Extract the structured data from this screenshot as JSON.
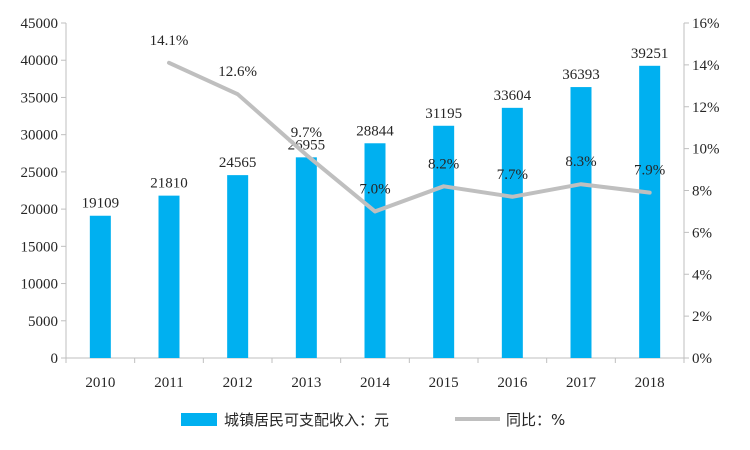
{
  "chart_data": {
    "type": "bar",
    "categories": [
      "2010",
      "2011",
      "2012",
      "2013",
      "2014",
      "2015",
      "2016",
      "2017",
      "2018"
    ],
    "series": [
      {
        "name": "城镇居民可支配收入：元",
        "type": "bar",
        "axis": "left",
        "color": "#00B0F0",
        "values": [
          19109,
          21810,
          24565,
          26955,
          28844,
          31195,
          33604,
          36393,
          39251
        ]
      },
      {
        "name": "同比：%",
        "type": "line",
        "axis": "right",
        "color": "#BFBFBF",
        "values": [
          null,
          14.1,
          12.6,
          9.7,
          7.0,
          8.2,
          7.7,
          8.3,
          7.9
        ],
        "labels": [
          "",
          "14.1%",
          "12.6%",
          "9.7%",
          "7.0%",
          "8.2%",
          "7.7%",
          "8.3%",
          "7.9%"
        ]
      }
    ],
    "ylim_left": [
      0,
      45000
    ],
    "yticks_left": [
      "0",
      "5000",
      "10000",
      "15000",
      "20000",
      "25000",
      "30000",
      "35000",
      "40000",
      "45000"
    ],
    "ylim_right": [
      0,
      16
    ],
    "yticks_right": [
      "0%",
      "2%",
      "4%",
      "6%",
      "8%",
      "10%",
      "12%",
      "14%",
      "16%"
    ],
    "grid": false,
    "legend_position": "bottom"
  }
}
